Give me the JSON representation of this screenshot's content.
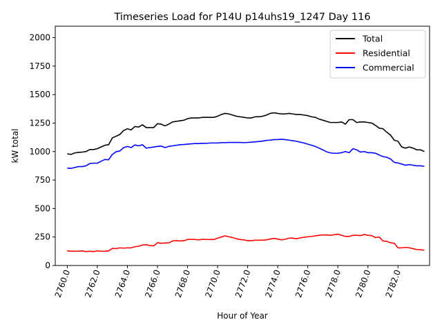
{
  "chart_data": {
    "type": "line",
    "title": "Timeseries Load for P14U p14uhs19_1247  Day 116",
    "xlabel": "Hour of Year",
    "ylabel": "kW total",
    "xlim": [
      2759.2,
      2784.1
    ],
    "ylim": [
      0,
      2100
    ],
    "x_ticks": [
      2760,
      2762,
      2764,
      2766,
      2768,
      2770,
      2772,
      2774,
      2776,
      2778,
      2780,
      2782
    ],
    "x_tick_labels": [
      "2760.0",
      "2762.0",
      "2764.0",
      "2766.0",
      "2768.0",
      "2770.0",
      "2772.0",
      "2774.0",
      "2776.0",
      "2778.0",
      "2780.0",
      "2782.0"
    ],
    "y_ticks": [
      0,
      250,
      500,
      750,
      1000,
      1250,
      1500,
      1750,
      2000
    ],
    "y_tick_labels": [
      "0",
      "250",
      "500",
      "750",
      "1000",
      "1250",
      "1500",
      "1750",
      "2000"
    ],
    "legend_position": "top-right",
    "x": [
      2760.0,
      2760.25,
      2760.5,
      2760.75,
      2761.0,
      2761.25,
      2761.5,
      2761.75,
      2762.0,
      2762.25,
      2762.5,
      2762.75,
      2763.0,
      2763.25,
      2763.5,
      2763.75,
      2764.0,
      2764.25,
      2764.5,
      2764.75,
      2765.0,
      2765.25,
      2765.5,
      2765.75,
      2766.0,
      2766.25,
      2766.5,
      2766.75,
      2767.0,
      2767.25,
      2767.5,
      2767.75,
      2768.0,
      2768.25,
      2768.5,
      2768.75,
      2769.0,
      2769.25,
      2769.5,
      2769.75,
      2770.0,
      2770.25,
      2770.5,
      2770.75,
      2771.0,
      2771.25,
      2771.5,
      2771.75,
      2772.0,
      2772.25,
      2772.5,
      2772.75,
      2773.0,
      2773.25,
      2773.5,
      2773.75,
      2774.0,
      2774.25,
      2774.5,
      2774.75,
      2775.0,
      2775.25,
      2775.5,
      2775.75,
      2776.0,
      2776.25,
      2776.5,
      2776.75,
      2777.0,
      2777.25,
      2777.5,
      2777.75,
      2778.0,
      2778.25,
      2778.5,
      2778.75,
      2779.0,
      2779.25,
      2779.5,
      2779.75,
      2780.0,
      2780.25,
      2780.5,
      2780.75,
      2781.0,
      2781.25,
      2781.5,
      2781.75,
      2782.0,
      2782.25,
      2782.5,
      2782.75,
      2783.0,
      2783.25,
      2783.5,
      2783.75
    ],
    "series": [
      {
        "name": "Total",
        "color": "#000000",
        "values": [
          980,
          975,
          988,
          993,
          995,
          1000,
          1018,
          1018,
          1025,
          1040,
          1055,
          1060,
          1120,
          1135,
          1150,
          1185,
          1200,
          1190,
          1220,
          1215,
          1235,
          1210,
          1210,
          1210,
          1245,
          1240,
          1225,
          1240,
          1260,
          1265,
          1270,
          1275,
          1288,
          1295,
          1295,
          1295,
          1300,
          1300,
          1300,
          1300,
          1310,
          1325,
          1335,
          1330,
          1320,
          1310,
          1305,
          1300,
          1295,
          1295,
          1305,
          1305,
          1310,
          1320,
          1335,
          1340,
          1335,
          1330,
          1330,
          1335,
          1330,
          1325,
          1325,
          1320,
          1315,
          1305,
          1300,
          1285,
          1275,
          1265,
          1255,
          1255,
          1255,
          1260,
          1240,
          1280,
          1280,
          1255,
          1260,
          1260,
          1255,
          1250,
          1230,
          1205,
          1200,
          1170,
          1145,
          1100,
          1090,
          1040,
          1030,
          1040,
          1030,
          1015,
          1015,
          1000
        ]
      },
      {
        "name": "Residential",
        "color": "#ff0000",
        "values": [
          128,
          125,
          125,
          125,
          128,
          122,
          125,
          122,
          128,
          125,
          125,
          128,
          150,
          148,
          155,
          152,
          155,
          155,
          165,
          168,
          180,
          182,
          175,
          172,
          200,
          195,
          198,
          198,
          215,
          218,
          215,
          218,
          228,
          230,
          228,
          225,
          230,
          228,
          228,
          228,
          240,
          250,
          260,
          252,
          245,
          235,
          228,
          225,
          218,
          218,
          222,
          222,
          222,
          225,
          232,
          238,
          232,
          225,
          230,
          240,
          240,
          235,
          242,
          248,
          252,
          255,
          260,
          265,
          268,
          268,
          265,
          270,
          275,
          265,
          255,
          255,
          265,
          265,
          262,
          272,
          265,
          262,
          245,
          250,
          215,
          212,
          200,
          195,
          155,
          155,
          158,
          155,
          148,
          140,
          138,
          135
        ]
      },
      {
        "name": "Commercial",
        "color": "#0000ff",
        "values": [
          855,
          852,
          860,
          868,
          868,
          875,
          895,
          898,
          898,
          915,
          930,
          928,
          975,
          998,
          1005,
          1035,
          1045,
          1035,
          1058,
          1050,
          1060,
          1030,
          1035,
          1040,
          1045,
          1048,
          1035,
          1045,
          1050,
          1055,
          1060,
          1062,
          1065,
          1068,
          1070,
          1070,
          1072,
          1072,
          1075,
          1075,
          1075,
          1078,
          1078,
          1080,
          1080,
          1080,
          1080,
          1078,
          1080,
          1082,
          1085,
          1088,
          1092,
          1098,
          1100,
          1105,
          1105,
          1108,
          1105,
          1100,
          1095,
          1090,
          1082,
          1075,
          1065,
          1055,
          1045,
          1030,
          1015,
          998,
          988,
          985,
          985,
          990,
          1000,
          990,
          1025,
          1015,
          995,
          1000,
          990,
          990,
          985,
          970,
          955,
          950,
          935,
          905,
          900,
          890,
          880,
          885,
          880,
          875,
          875,
          870
        ]
      }
    ]
  }
}
